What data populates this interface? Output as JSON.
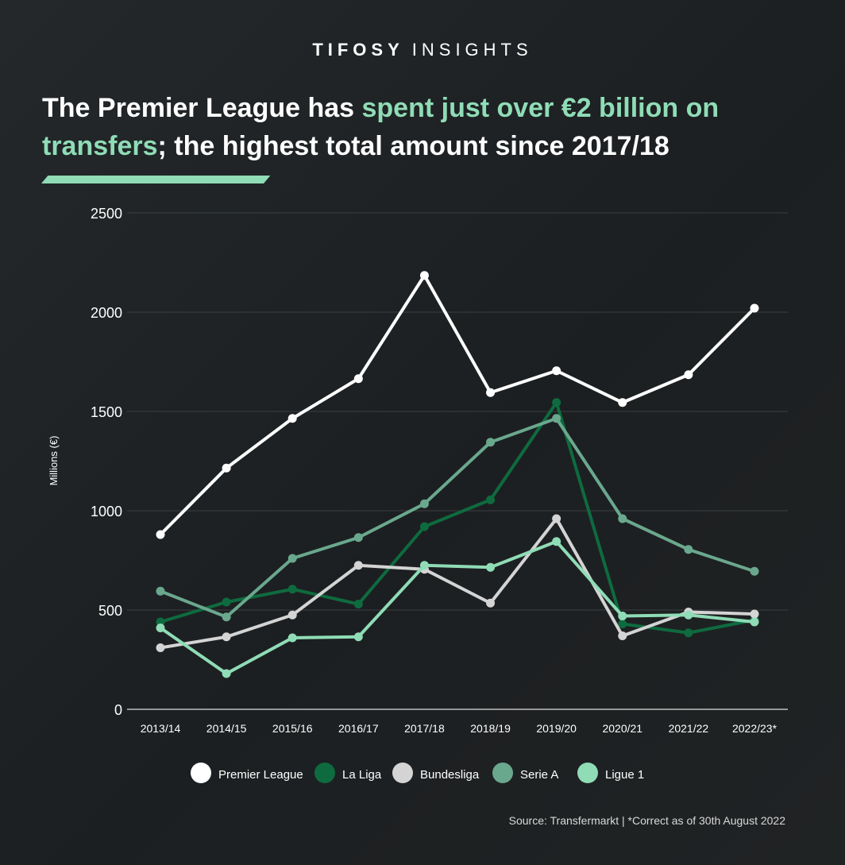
{
  "header": {
    "brand_bold": "TIFOSY",
    "brand_light": "INSIGHTS",
    "title_part1": "The Premier League has ",
    "title_highlight": "spent just over €2 billion on transfers",
    "title_part2": "; the highest total amount since 2017/18"
  },
  "colors": {
    "accent": "#8fdcb6",
    "premier_league": "#ffffff",
    "la_liga": "#0e6b3f",
    "bundesliga": "#d4d4d4",
    "serie_a": "#6aa88e",
    "ligue_1": "#8fdcb6"
  },
  "chart_data": {
    "type": "line",
    "categories": [
      "2013/14",
      "2014/15",
      "2015/16",
      "2016/17",
      "2017/18",
      "2018/19",
      "2019/20",
      "2020/21",
      "2021/22",
      "2022/23*"
    ],
    "ylabel": "Millions (€)",
    "ylim": [
      0,
      2500
    ],
    "yticks": [
      0,
      500,
      1000,
      1500,
      2000,
      2500
    ],
    "grid": true,
    "legend_position": "bottom",
    "series": [
      {
        "name": "Premier League",
        "color": "#ffffff",
        "values": [
          880,
          1215,
          1465,
          1665,
          2185,
          1595,
          1705,
          1545,
          1685,
          2020
        ]
      },
      {
        "name": "La Liga",
        "color": "#0e6b3f",
        "values": [
          440,
          540,
          605,
          530,
          920,
          1055,
          1545,
          430,
          385,
          450
        ]
      },
      {
        "name": "Bundesliga",
        "color": "#d4d4d4",
        "values": [
          310,
          365,
          475,
          725,
          705,
          535,
          960,
          370,
          490,
          480
        ]
      },
      {
        "name": "Serie A",
        "color": "#6aa88e",
        "values": [
          595,
          465,
          760,
          865,
          1035,
          1345,
          1465,
          960,
          805,
          695
        ]
      },
      {
        "name": "Ligue 1",
        "color": "#8fdcb6",
        "values": [
          410,
          180,
          360,
          365,
          725,
          715,
          845,
          470,
          475,
          440
        ]
      }
    ]
  },
  "footer": {
    "source": "Source: Transfermarkt | *Correct as of 30th August 2022"
  }
}
